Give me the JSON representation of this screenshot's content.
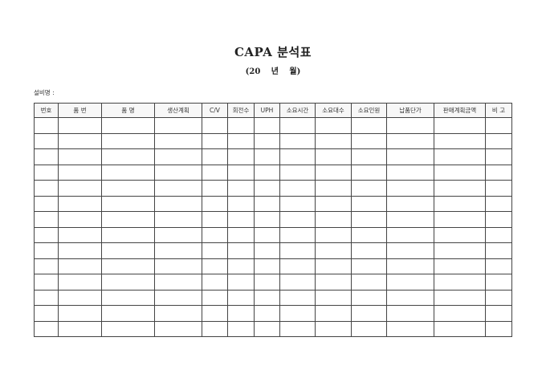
{
  "document": {
    "title": "CAPA 분석표",
    "subtitle": "(20 년 월)",
    "equipment_label": "설비명 :"
  },
  "table": {
    "columns": [
      "번호",
      "품 번",
      "품 명",
      "생산계획",
      "C/V",
      "회전수",
      "UPH",
      "소요시간",
      "소요대수",
      "소요인원",
      "납품단가",
      "판매계획금액",
      "비 고"
    ],
    "empty_rows": 14
  }
}
